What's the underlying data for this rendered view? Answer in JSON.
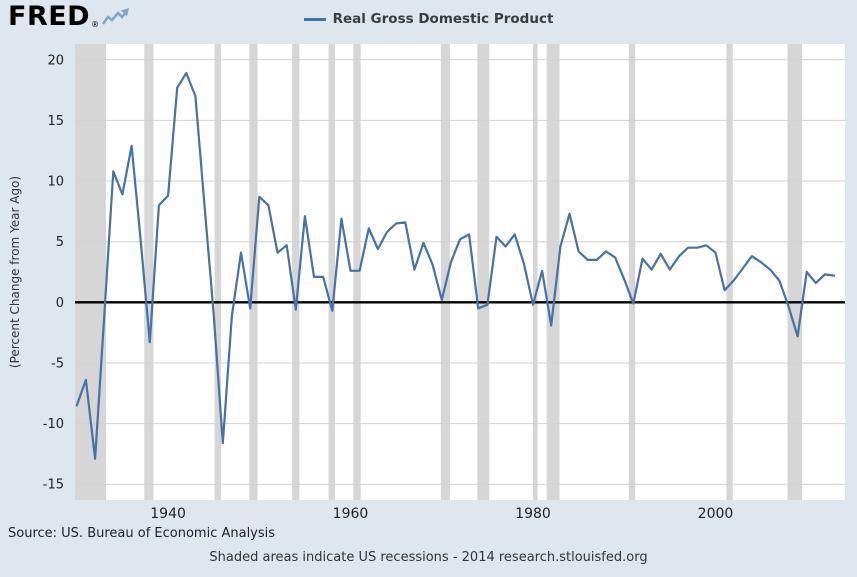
{
  "header": {
    "logo_text": "FRED",
    "logo_reg": "®"
  },
  "legend": {
    "label": "Real Gross Domestic Product"
  },
  "footer": {
    "source": "Source: US. Bureau of Economic Analysis",
    "note": "Shaded areas indicate US recessions - 2014 research.stlouisfed.org"
  },
  "chart_data": {
    "type": "line",
    "title": "Real Gross Domestic Product",
    "xlabel": "",
    "ylabel": "(Percent Change from Year Ago)",
    "x_ticks": [
      1940,
      1960,
      1980,
      2000
    ],
    "y_ticks": [
      -15,
      -10,
      -5,
      0,
      5,
      10,
      15,
      20
    ],
    "xlim": [
      1929.8,
      2014.2
    ],
    "ylim": [
      -16.3,
      21.3
    ],
    "grid": "horizontal",
    "legend_position": "top-center",
    "line_color": "#4572a7",
    "zero_line_color": "#000000",
    "grid_color": "#d2d2d2",
    "recession_color": "#d6d6d6",
    "background_color": "#dee6ee",
    "plot_background": "#ffffff",
    "series": [
      {
        "name": "Real Gross Domestic Product",
        "x": [
          1930,
          1931,
          1932,
          1933,
          1934,
          1935,
          1936,
          1937,
          1938,
          1939,
          1940,
          1941,
          1942,
          1943,
          1944,
          1945,
          1946,
          1947,
          1948,
          1949,
          1950,
          1951,
          1952,
          1953,
          1954,
          1955,
          1956,
          1957,
          1958,
          1959,
          1960,
          1961,
          1962,
          1963,
          1964,
          1965,
          1966,
          1967,
          1968,
          1969,
          1970,
          1971,
          1972,
          1973,
          1974,
          1975,
          1976,
          1977,
          1978,
          1979,
          1980,
          1981,
          1982,
          1983,
          1984,
          1985,
          1986,
          1987,
          1988,
          1989,
          1990,
          1991,
          1992,
          1993,
          1994,
          1995,
          1996,
          1997,
          1998,
          1999,
          2000,
          2001,
          2002,
          2003,
          2004,
          2005,
          2006,
          2007,
          2008,
          2009,
          2010,
          2011,
          2012,
          2013
        ],
        "y": [
          -8.5,
          -6.4,
          -12.9,
          -1.2,
          10.8,
          8.9,
          12.9,
          5.1,
          -3.3,
          8.0,
          8.8,
          17.7,
          18.9,
          17.0,
          8.0,
          -1.0,
          -11.6,
          -1.1,
          4.1,
          -0.5,
          8.7,
          8.0,
          4.1,
          4.7,
          -0.6,
          7.1,
          2.1,
          2.1,
          -0.7,
          6.9,
          2.6,
          2.6,
          6.1,
          4.4,
          5.8,
          6.5,
          6.6,
          2.7,
          4.9,
          3.1,
          0.2,
          3.3,
          5.2,
          5.6,
          -0.5,
          -0.2,
          5.4,
          4.6,
          5.6,
          3.2,
          -0.2,
          2.6,
          -1.9,
          4.6,
          7.3,
          4.2,
          3.5,
          3.5,
          4.2,
          3.7,
          1.9,
          -0.1,
          3.6,
          2.7,
          4.0,
          2.7,
          3.8,
          4.5,
          4.5,
          4.7,
          4.1,
          1.0,
          1.8,
          2.8,
          3.8,
          3.3,
          2.7,
          1.8,
          -0.3,
          -2.8,
          2.5,
          1.6,
          2.3,
          2.2
        ]
      }
    ],
    "recessions": [
      [
        1929.7,
        1933.2
      ],
      [
        1937.4,
        1938.4
      ],
      [
        1945.1,
        1945.8
      ],
      [
        1948.9,
        1949.8
      ],
      [
        1953.6,
        1954.4
      ],
      [
        1957.6,
        1958.3
      ],
      [
        1960.3,
        1961.1
      ],
      [
        1969.9,
        1970.9
      ],
      [
        1973.9,
        1975.2
      ],
      [
        1980.0,
        1980.5
      ],
      [
        1981.5,
        1982.9
      ],
      [
        1990.5,
        1991.2
      ],
      [
        2001.2,
        2001.9
      ],
      [
        2007.9,
        2009.5
      ]
    ]
  }
}
